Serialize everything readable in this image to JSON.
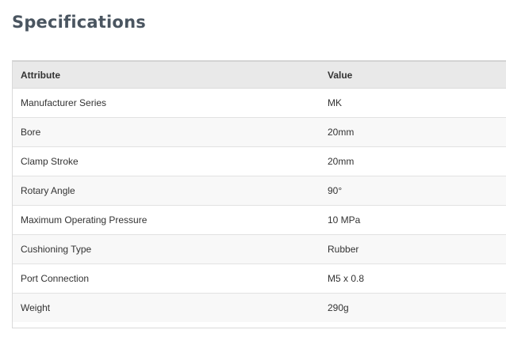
{
  "title": "Specifications",
  "table": {
    "headers": [
      "Attribute",
      "Value"
    ],
    "rows": [
      [
        "Manufacturer Series",
        "MK"
      ],
      [
        "Bore",
        "20mm"
      ],
      [
        "Clamp Stroke",
        "20mm"
      ],
      [
        "Rotary Angle",
        "90°"
      ],
      [
        "Maximum Operating Pressure",
        "10 MPa"
      ],
      [
        "Cushioning Type",
        "Rubber"
      ],
      [
        "Port Connection",
        "M5 x 0.8"
      ],
      [
        "Weight",
        "290g"
      ]
    ]
  }
}
